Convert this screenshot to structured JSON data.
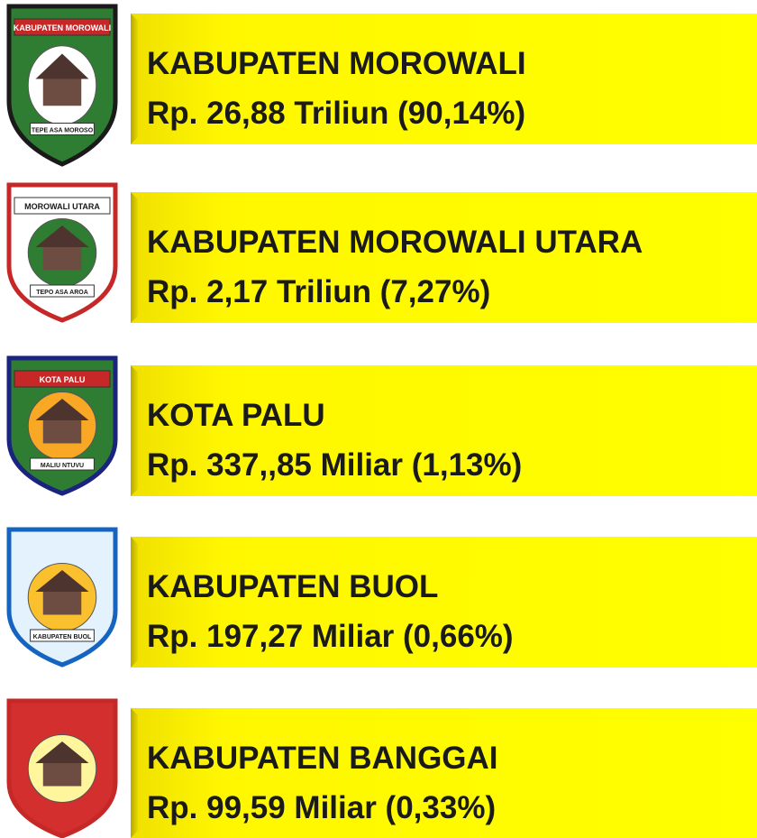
{
  "items": [
    {
      "name": "KABUPATEN MOROWALI",
      "amount": "Rp. 26,88 Triliun (90,14%)",
      "logo_label": "KABUPATEN MOROWALI",
      "logo_motto": "TEPE ASA MOROSO"
    },
    {
      "name": "KABUPATEN MOROWALI UTARA",
      "amount": "Rp. 2,17 Triliun (7,27%)",
      "logo_label": "MOROWALI UTARA",
      "logo_motto": "TEPO ASA AROA"
    },
    {
      "name": "KOTA PALU",
      "amount": "Rp. 337,,85 Miliar (1,13%)",
      "logo_label": "KOTA PALU",
      "logo_motto": "MALIU NTUVU"
    },
    {
      "name": "KABUPATEN BUOL",
      "amount": "Rp. 197,27 Miliar (0,66%)",
      "logo_motto": "KABUPATEN BUOL"
    },
    {
      "name": "KABUPATEN BANGGAI",
      "amount": "Rp. 99,59 Miliar (0,33%)"
    }
  ]
}
